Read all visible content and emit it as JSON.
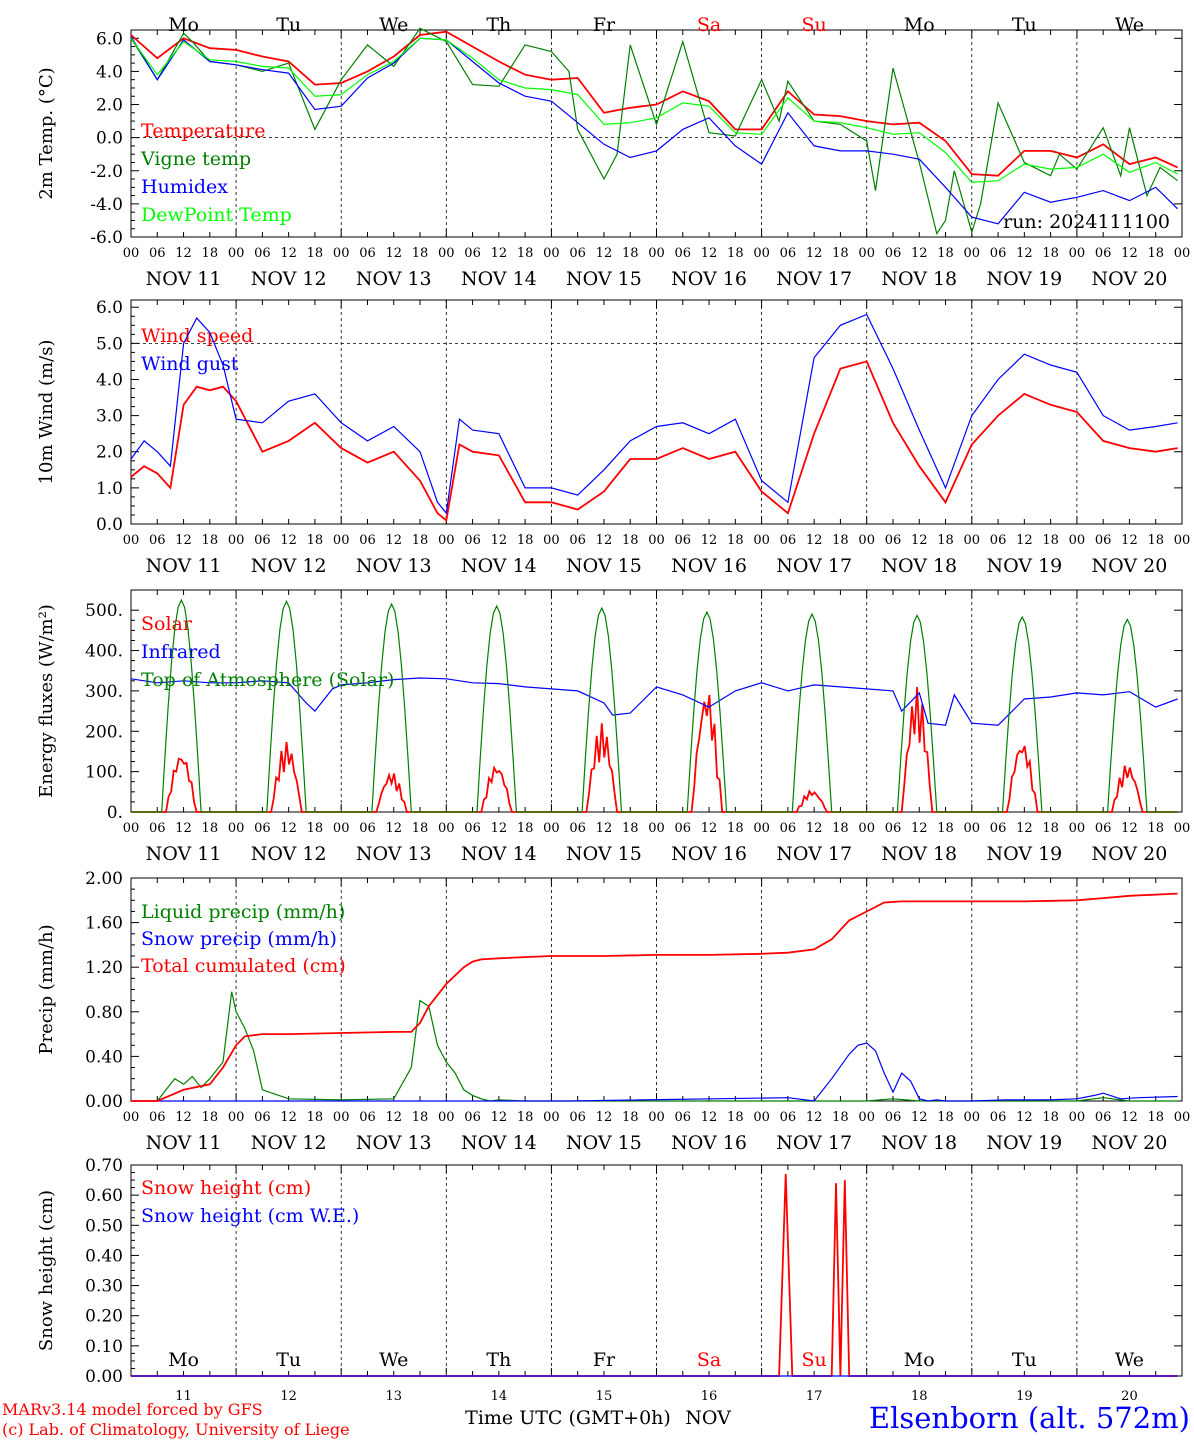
{
  "footer": {
    "model": "MARv3.14 model forced by GFS",
    "credit": "(c) Lab. of Climatology, University of Liege",
    "station": "Elsenborn (alt. 572m)",
    "xlabel": "Time UTC (GMT+0h)",
    "month": "NOV"
  },
  "run_label": "run: 2024111100",
  "days": [
    "Mo",
    "Tu",
    "We",
    "Th",
    "Fr",
    "Sa",
    "Su",
    "Mo",
    "Tu",
    "We"
  ],
  "weekend_color": "#ff0000",
  "date_labels": [
    "NOV 11",
    "NOV 12",
    "NOV 13",
    "NOV 14",
    "NOV 15",
    "NOV 16",
    "NOV 17",
    "NOV 18",
    "NOV 19",
    "NOV 20"
  ],
  "bottom_day_numbers": [
    "11",
    "12",
    "13",
    "14",
    "15",
    "16",
    "17",
    "18",
    "19",
    "20"
  ],
  "hour_ticks": [
    "00",
    "06",
    "12",
    "18"
  ],
  "hour_tick_end": "00",
  "chart_data": [
    {
      "type": "line",
      "ylabel": "2m Temp. (°C)",
      "ylim": [
        -6,
        6.5
      ],
      "yticks": [
        "-6.0",
        "-4.0",
        "-2.0",
        "0.0",
        "2.0",
        "4.0",
        "6.0"
      ],
      "ytick_values": [
        -6,
        -4,
        -2,
        0,
        2,
        4,
        6
      ],
      "dashed_y": [
        0
      ],
      "x_unit": "hours since NOV 11 00 UTC",
      "series": [
        {
          "name": "Temperature",
          "color": "#ff0000",
          "x": [
            0,
            6,
            12,
            18,
            24,
            30,
            36,
            42,
            48,
            54,
            60,
            66,
            72,
            78,
            84,
            90,
            96,
            102,
            108,
            114,
            120,
            126,
            132,
            138,
            144,
            150,
            156,
            162,
            168,
            174,
            180,
            186,
            192,
            198,
            204,
            210,
            216,
            222,
            228,
            234,
            239
          ],
          "y": [
            6.2,
            4.8,
            6.0,
            5.4,
            5.3,
            4.9,
            4.6,
            3.2,
            3.3,
            4.0,
            4.9,
            6.2,
            6.4,
            5.5,
            4.6,
            3.8,
            3.5,
            3.6,
            1.5,
            1.8,
            2.0,
            2.8,
            2.2,
            0.5,
            0.5,
            2.8,
            1.4,
            1.3,
            1.0,
            0.8,
            0.9,
            -0.2,
            -2.2,
            -2.3,
            -0.8,
            -0.8,
            -1.2,
            -0.4,
            -1.6,
            -1.2,
            -1.8
          ]
        },
        {
          "name": "Vigne temp",
          "color": "#008000",
          "x": [
            0,
            6,
            12,
            14,
            18,
            24,
            30,
            36,
            42,
            48,
            54,
            60,
            66,
            72,
            78,
            84,
            90,
            96,
            100,
            102,
            108,
            111,
            114,
            120,
            126,
            132,
            138,
            144,
            148,
            150,
            156,
            162,
            168,
            170,
            174,
            180,
            184,
            186,
            188,
            192,
            194,
            198,
            204,
            210,
            212,
            216,
            222,
            226,
            228,
            232,
            235,
            239
          ],
          "y": [
            6.0,
            3.5,
            6.3,
            5.8,
            4.6,
            4.4,
            4.0,
            4.5,
            0.5,
            3.5,
            5.6,
            4.3,
            6.6,
            5.8,
            3.2,
            3.1,
            5.6,
            5.2,
            4.0,
            0.5,
            -2.5,
            -1.0,
            5.6,
            0.8,
            5.8,
            0.3,
            0.1,
            3.5,
            1.0,
            3.4,
            1.0,
            0.8,
            -0.2,
            -3.2,
            4.2,
            -1.5,
            -5.8,
            -5.0,
            -2.0,
            -5.7,
            -4.0,
            2.1,
            -1.5,
            -2.3,
            -1.0,
            -1.9,
            0.6,
            -2.3,
            0.6,
            -3.5,
            -1.8,
            -2.6
          ]
        },
        {
          "name": "Humidex",
          "color": "#0000ff",
          "x": [
            0,
            6,
            12,
            18,
            24,
            30,
            36,
            42,
            48,
            54,
            60,
            66,
            72,
            78,
            84,
            90,
            96,
            102,
            108,
            114,
            120,
            126,
            132,
            138,
            144,
            150,
            156,
            162,
            168,
            174,
            180,
            186,
            192,
            198,
            204,
            210,
            216,
            222,
            228,
            234,
            239
          ],
          "y": [
            6.1,
            3.5,
            5.9,
            4.6,
            4.4,
            4.1,
            3.9,
            1.7,
            1.9,
            3.6,
            4.5,
            6.0,
            5.9,
            4.6,
            3.3,
            2.5,
            2.2,
            0.9,
            -0.4,
            -1.2,
            -0.8,
            0.5,
            1.2,
            -0.5,
            -1.6,
            1.5,
            -0.5,
            -0.8,
            -0.8,
            -1.0,
            -1.3,
            -3.0,
            -4.8,
            -5.2,
            -3.3,
            -3.9,
            -3.6,
            -3.2,
            -3.8,
            -3.0,
            -4.3
          ]
        },
        {
          "name": "DewPoint Temp",
          "color": "#00ff00",
          "x": [
            0,
            6,
            12,
            18,
            24,
            30,
            36,
            42,
            48,
            54,
            60,
            66,
            72,
            78,
            84,
            90,
            96,
            102,
            108,
            114,
            120,
            126,
            132,
            138,
            144,
            150,
            156,
            162,
            168,
            174,
            180,
            186,
            192,
            198,
            204,
            210,
            216,
            222,
            228,
            234,
            239
          ],
          "y": [
            6.0,
            3.8,
            5.8,
            4.7,
            4.6,
            4.3,
            4.2,
            2.5,
            2.6,
            3.8,
            4.6,
            6.0,
            5.9,
            4.8,
            3.5,
            3.0,
            2.9,
            2.6,
            0.8,
            0.9,
            1.2,
            2.1,
            1.9,
            0.3,
            0.2,
            2.4,
            1.0,
            0.9,
            0.6,
            0.2,
            0.3,
            -0.9,
            -2.7,
            -2.6,
            -1.6,
            -1.9,
            -1.8,
            -1.0,
            -2.1,
            -1.5,
            -2.2
          ]
        }
      ]
    },
    {
      "type": "line",
      "ylabel": "10m Wind (m/s)",
      "ylim": [
        0,
        6.2
      ],
      "yticks": [
        "0.0",
        "1.0",
        "2.0",
        "3.0",
        "4.0",
        "5.0",
        "6.0"
      ],
      "ytick_values": [
        0,
        1,
        2,
        3,
        4,
        5,
        6
      ],
      "dashed_y": [
        5
      ],
      "series": [
        {
          "name": "Wind speed",
          "color": "#ff0000",
          "x": [
            0,
            3,
            6,
            9,
            12,
            15,
            18,
            21,
            24,
            30,
            36,
            42,
            48,
            54,
            60,
            66,
            70,
            72,
            75,
            78,
            84,
            90,
            96,
            102,
            108,
            114,
            120,
            126,
            132,
            138,
            144,
            150,
            156,
            162,
            168,
            174,
            180,
            186,
            192,
            198,
            204,
            210,
            216,
            222,
            228,
            234,
            239
          ],
          "y": [
            1.3,
            1.6,
            1.4,
            1.0,
            3.3,
            3.8,
            3.7,
            3.8,
            3.4,
            2.0,
            2.3,
            2.8,
            2.1,
            1.7,
            2.0,
            1.2,
            0.3,
            0.1,
            2.2,
            2.0,
            1.9,
            0.6,
            0.6,
            0.4,
            0.9,
            1.8,
            1.8,
            2.1,
            1.8,
            2.0,
            0.9,
            0.3,
            2.5,
            4.3,
            4.5,
            2.8,
            1.6,
            0.6,
            2.2,
            3.0,
            3.6,
            3.3,
            3.1,
            2.3,
            2.1,
            2.0,
            2.1
          ]
        },
        {
          "name": "Wind gust",
          "color": "#0000ff",
          "x": [
            0,
            3,
            6,
            9,
            12,
            15,
            18,
            21,
            24,
            30,
            36,
            42,
            48,
            54,
            60,
            66,
            70,
            72,
            75,
            78,
            84,
            90,
            96,
            102,
            108,
            114,
            120,
            126,
            132,
            138,
            144,
            150,
            156,
            162,
            168,
            174,
            180,
            186,
            192,
            198,
            204,
            210,
            216,
            222,
            228,
            234,
            239
          ],
          "y": [
            1.8,
            2.3,
            2.0,
            1.6,
            5.0,
            5.7,
            5.3,
            4.4,
            2.9,
            2.8,
            3.4,
            3.6,
            2.8,
            2.3,
            2.7,
            2.0,
            0.6,
            0.3,
            2.9,
            2.6,
            2.5,
            1.0,
            1.0,
            0.8,
            1.5,
            2.3,
            2.7,
            2.8,
            2.5,
            2.9,
            1.2,
            0.6,
            4.6,
            5.5,
            5.8,
            4.3,
            2.6,
            1.0,
            3.0,
            4.0,
            4.7,
            4.4,
            4.2,
            3.0,
            2.6,
            2.7,
            2.8
          ]
        }
      ]
    },
    {
      "type": "line",
      "ylabel": "Energy fluxes (W/m²)",
      "ylim": [
        0,
        550
      ],
      "yticks": [
        "0.",
        "100.",
        "200.",
        "300.",
        "400.",
        "500."
      ],
      "ytick_values": [
        0,
        100,
        200,
        300,
        400,
        500
      ],
      "dashed_y": [],
      "series": [
        {
          "name": "Solar",
          "color": "#ff0000",
          "peaks": [
            150,
            175,
            100,
            120,
            220,
            310,
            55,
            310,
            180,
            120
          ]
        },
        {
          "name": "Infrared",
          "color": "#0000ff",
          "x": [
            0,
            6,
            12,
            18,
            24,
            30,
            36,
            40,
            42,
            46,
            48,
            54,
            60,
            66,
            72,
            78,
            84,
            90,
            96,
            102,
            108,
            110,
            114,
            120,
            126,
            132,
            138,
            144,
            150,
            156,
            162,
            168,
            174,
            176,
            180,
            182,
            186,
            188,
            192,
            198,
            204,
            210,
            216,
            222,
            228,
            234,
            239
          ],
          "y": [
            330,
            320,
            325,
            320,
            320,
            325,
            320,
            270,
            250,
            305,
            315,
            320,
            328,
            332,
            330,
            320,
            318,
            310,
            305,
            300,
            270,
            240,
            245,
            310,
            290,
            260,
            300,
            320,
            300,
            315,
            310,
            305,
            300,
            250,
            295,
            220,
            215,
            290,
            220,
            215,
            280,
            285,
            295,
            290,
            298,
            260,
            280
          ]
        },
        {
          "name": "Top of Atmosphere (Solar)",
          "color": "#008000",
          "peaks": [
            525,
            522,
            515,
            510,
            505,
            495,
            490,
            487,
            483,
            477
          ]
        }
      ]
    },
    {
      "type": "line",
      "ylabel": "Precip (mm/h)",
      "ylim": [
        0,
        2.0
      ],
      "yticks": [
        "0.00",
        "0.40",
        "0.80",
        "1.20",
        "1.60",
        "2.00"
      ],
      "ytick_values": [
        0,
        0.4,
        0.8,
        1.2,
        1.6,
        2.0
      ],
      "dashed_y": [],
      "series": [
        {
          "name": "Liquid precip (mm/h)",
          "color": "#008000",
          "x": [
            0,
            6,
            8,
            10,
            12,
            14,
            16,
            18,
            21,
            23,
            24,
            26,
            28,
            30,
            36,
            48,
            60,
            64,
            66,
            68,
            70,
            72,
            74,
            76,
            78,
            80,
            82,
            84,
            90,
            168,
            174,
            180,
            186,
            192,
            216,
            222,
            228,
            239
          ],
          "y": [
            0,
            0,
            0.1,
            0.2,
            0.15,
            0.22,
            0.12,
            0.2,
            0.35,
            0.98,
            0.8,
            0.65,
            0.45,
            0.1,
            0.02,
            0.01,
            0.02,
            0.3,
            0.9,
            0.85,
            0.5,
            0.35,
            0.25,
            0.1,
            0.05,
            0.02,
            0,
            0.01,
            0,
            0,
            0.02,
            0,
            0,
            0,
            0,
            0.03,
            0,
            0
          ]
        },
        {
          "name": "Snow precip (mm/h)",
          "color": "#0000ff",
          "x": [
            0,
            100,
            150,
            156,
            160,
            164,
            166,
            168,
            170,
            172,
            174,
            176,
            178,
            180,
            182,
            184,
            186,
            192,
            200,
            210,
            216,
            220,
            222,
            226,
            230,
            239
          ],
          "y": [
            0,
            0,
            0.03,
            0.0,
            0.2,
            0.42,
            0.5,
            0.52,
            0.45,
            0.25,
            0.08,
            0.25,
            0.18,
            0.02,
            0,
            0.01,
            0,
            0,
            0.01,
            0.01,
            0.02,
            0.05,
            0.07,
            0.02,
            0.03,
            0.04
          ]
        },
        {
          "name": "Total cumulated (cm)",
          "color": "#ff0000",
          "x": [
            0,
            6,
            12,
            18,
            21,
            24,
            26,
            30,
            36,
            48,
            60,
            64,
            66,
            68,
            72,
            76,
            78,
            80,
            84,
            96,
            108,
            120,
            132,
            144,
            150,
            156,
            160,
            164,
            168,
            172,
            176,
            180,
            192,
            204,
            216,
            222,
            228,
            239
          ],
          "y": [
            0,
            0,
            0.1,
            0.15,
            0.3,
            0.5,
            0.58,
            0.6,
            0.6,
            0.61,
            0.62,
            0.62,
            0.7,
            0.85,
            1.05,
            1.2,
            1.25,
            1.27,
            1.28,
            1.3,
            1.3,
            1.31,
            1.31,
            1.32,
            1.33,
            1.36,
            1.45,
            1.62,
            1.7,
            1.78,
            1.79,
            1.79,
            1.79,
            1.79,
            1.8,
            1.82,
            1.84,
            1.86
          ]
        }
      ]
    },
    {
      "type": "line",
      "ylabel": "Snow height (cm)",
      "ylim": [
        0,
        0.7
      ],
      "yticks": [
        "0.00",
        "0.10",
        "0.20",
        "0.30",
        "0.40",
        "0.50",
        "0.60",
        "0.70"
      ],
      "ytick_values": [
        0,
        0.1,
        0.2,
        0.3,
        0.4,
        0.5,
        0.6,
        0.7
      ],
      "dashed_y": [],
      "series": [
        {
          "name": "Snow height (cm)",
          "color": "#ff0000",
          "x": [
            0,
            148,
            149.5,
            151,
            160,
            161,
            162,
            163,
            164,
            239
          ],
          "y": [
            0,
            0,
            0.67,
            0,
            0,
            0.64,
            0,
            0.65,
            0,
            0
          ]
        },
        {
          "name": "Snow height (cm W.E.)",
          "color": "#0000ff",
          "x": [
            0,
            239
          ],
          "y": [
            0,
            0
          ]
        }
      ]
    }
  ]
}
